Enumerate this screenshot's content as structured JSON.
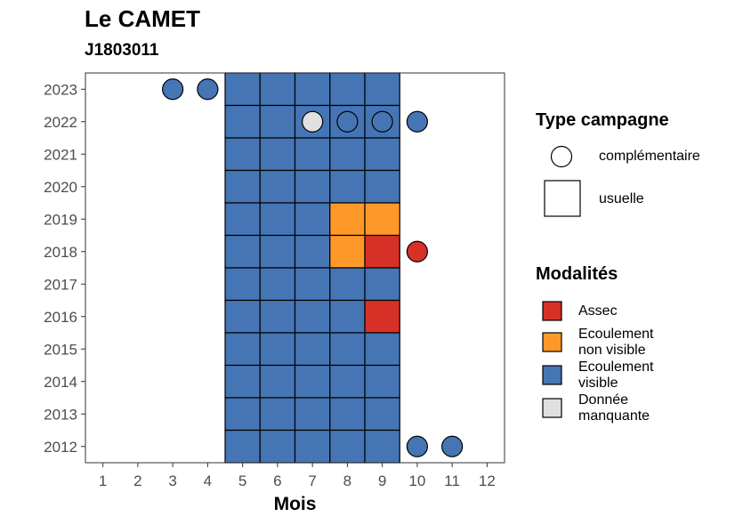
{
  "title": "Le CAMET",
  "subtitle": "J1803011",
  "colors": {
    "assec": "#d73027",
    "non_visible": "#fe9929",
    "visible": "#4575b4",
    "manquante": "#e0e0e0"
  },
  "chart_data": {
    "type": "heatmap",
    "xlabel": "Mois",
    "ylabel": "",
    "x_ticks": [
      1,
      2,
      3,
      4,
      5,
      6,
      7,
      8,
      9,
      10,
      11,
      12
    ],
    "y_ticks": [
      2012,
      2013,
      2014,
      2015,
      2016,
      2017,
      2018,
      2019,
      2020,
      2021,
      2022,
      2023
    ],
    "x_range": [
      0.5,
      12.5
    ],
    "y_range": [
      2011.5,
      2023.5
    ],
    "usual_campaign_months": [
      5,
      6,
      7,
      8,
      9
    ],
    "cells": [
      {
        "year": 2023,
        "month": 3,
        "type": "complementaire",
        "modalite": "visible"
      },
      {
        "year": 2023,
        "month": 4,
        "type": "complementaire",
        "modalite": "visible"
      },
      {
        "year": 2023,
        "month": 5,
        "type": "usuelle",
        "modalite": "visible"
      },
      {
        "year": 2023,
        "month": 6,
        "type": "usuelle",
        "modalite": "visible"
      },
      {
        "year": 2023,
        "month": 7,
        "type": "usuelle",
        "modalite": "visible"
      },
      {
        "year": 2023,
        "month": 8,
        "type": "usuelle",
        "modalite": "visible"
      },
      {
        "year": 2023,
        "month": 9,
        "type": "usuelle",
        "modalite": "visible"
      },
      {
        "year": 2022,
        "month": 5,
        "type": "usuelle",
        "modalite": "visible"
      },
      {
        "year": 2022,
        "month": 6,
        "type": "usuelle",
        "modalite": "visible"
      },
      {
        "year": 2022,
        "month": 7,
        "type": "usuelle",
        "modalite": "visible"
      },
      {
        "year": 2022,
        "month": 8,
        "type": "usuelle",
        "modalite": "visible"
      },
      {
        "year": 2022,
        "month": 9,
        "type": "usuelle",
        "modalite": "visible"
      },
      {
        "year": 2022,
        "month": 7,
        "type": "complementaire",
        "modalite": "manquante"
      },
      {
        "year": 2022,
        "month": 8,
        "type": "complementaire",
        "modalite": "visible"
      },
      {
        "year": 2022,
        "month": 9,
        "type": "complementaire",
        "modalite": "visible"
      },
      {
        "year": 2022,
        "month": 10,
        "type": "complementaire",
        "modalite": "visible"
      },
      {
        "year": 2021,
        "month": 5,
        "type": "usuelle",
        "modalite": "visible"
      },
      {
        "year": 2021,
        "month": 6,
        "type": "usuelle",
        "modalite": "visible"
      },
      {
        "year": 2021,
        "month": 7,
        "type": "usuelle",
        "modalite": "visible"
      },
      {
        "year": 2021,
        "month": 8,
        "type": "usuelle",
        "modalite": "visible"
      },
      {
        "year": 2021,
        "month": 9,
        "type": "usuelle",
        "modalite": "visible"
      },
      {
        "year": 2020,
        "month": 5,
        "type": "usuelle",
        "modalite": "visible"
      },
      {
        "year": 2020,
        "month": 6,
        "type": "usuelle",
        "modalite": "visible"
      },
      {
        "year": 2020,
        "month": 7,
        "type": "usuelle",
        "modalite": "visible"
      },
      {
        "year": 2020,
        "month": 8,
        "type": "usuelle",
        "modalite": "visible"
      },
      {
        "year": 2020,
        "month": 9,
        "type": "usuelle",
        "modalite": "visible"
      },
      {
        "year": 2019,
        "month": 5,
        "type": "usuelle",
        "modalite": "visible"
      },
      {
        "year": 2019,
        "month": 6,
        "type": "usuelle",
        "modalite": "visible"
      },
      {
        "year": 2019,
        "month": 7,
        "type": "usuelle",
        "modalite": "visible"
      },
      {
        "year": 2019,
        "month": 8,
        "type": "usuelle",
        "modalite": "non_visible"
      },
      {
        "year": 2019,
        "month": 9,
        "type": "usuelle",
        "modalite": "non_visible"
      },
      {
        "year": 2018,
        "month": 5,
        "type": "usuelle",
        "modalite": "visible"
      },
      {
        "year": 2018,
        "month": 6,
        "type": "usuelle",
        "modalite": "visible"
      },
      {
        "year": 2018,
        "month": 7,
        "type": "usuelle",
        "modalite": "visible"
      },
      {
        "year": 2018,
        "month": 8,
        "type": "usuelle",
        "modalite": "non_visible"
      },
      {
        "year": 2018,
        "month": 9,
        "type": "usuelle",
        "modalite": "assec"
      },
      {
        "year": 2018,
        "month": 10,
        "type": "complementaire",
        "modalite": "assec"
      },
      {
        "year": 2017,
        "month": 5,
        "type": "usuelle",
        "modalite": "visible"
      },
      {
        "year": 2017,
        "month": 6,
        "type": "usuelle",
        "modalite": "visible"
      },
      {
        "year": 2017,
        "month": 7,
        "type": "usuelle",
        "modalite": "visible"
      },
      {
        "year": 2017,
        "month": 8,
        "type": "usuelle",
        "modalite": "visible"
      },
      {
        "year": 2017,
        "month": 9,
        "type": "usuelle",
        "modalite": "visible"
      },
      {
        "year": 2016,
        "month": 5,
        "type": "usuelle",
        "modalite": "visible"
      },
      {
        "year": 2016,
        "month": 6,
        "type": "usuelle",
        "modalite": "visible"
      },
      {
        "year": 2016,
        "month": 7,
        "type": "usuelle",
        "modalite": "visible"
      },
      {
        "year": 2016,
        "month": 8,
        "type": "usuelle",
        "modalite": "visible"
      },
      {
        "year": 2016,
        "month": 9,
        "type": "usuelle",
        "modalite": "assec"
      },
      {
        "year": 2015,
        "month": 5,
        "type": "usuelle",
        "modalite": "visible"
      },
      {
        "year": 2015,
        "month": 6,
        "type": "usuelle",
        "modalite": "visible"
      },
      {
        "year": 2015,
        "month": 7,
        "type": "usuelle",
        "modalite": "visible"
      },
      {
        "year": 2015,
        "month": 8,
        "type": "usuelle",
        "modalite": "visible"
      },
      {
        "year": 2015,
        "month": 9,
        "type": "usuelle",
        "modalite": "visible"
      },
      {
        "year": 2014,
        "month": 5,
        "type": "usuelle",
        "modalite": "visible"
      },
      {
        "year": 2014,
        "month": 6,
        "type": "usuelle",
        "modalite": "visible"
      },
      {
        "year": 2014,
        "month": 7,
        "type": "usuelle",
        "modalite": "visible"
      },
      {
        "year": 2014,
        "month": 8,
        "type": "usuelle",
        "modalite": "visible"
      },
      {
        "year": 2014,
        "month": 9,
        "type": "usuelle",
        "modalite": "visible"
      },
      {
        "year": 2013,
        "month": 5,
        "type": "usuelle",
        "modalite": "visible"
      },
      {
        "year": 2013,
        "month": 6,
        "type": "usuelle",
        "modalite": "visible"
      },
      {
        "year": 2013,
        "month": 7,
        "type": "usuelle",
        "modalite": "visible"
      },
      {
        "year": 2013,
        "month": 8,
        "type": "usuelle",
        "modalite": "visible"
      },
      {
        "year": 2013,
        "month": 9,
        "type": "usuelle",
        "modalite": "visible"
      },
      {
        "year": 2012,
        "month": 5,
        "type": "usuelle",
        "modalite": "visible"
      },
      {
        "year": 2012,
        "month": 6,
        "type": "usuelle",
        "modalite": "visible"
      },
      {
        "year": 2012,
        "month": 7,
        "type": "usuelle",
        "modalite": "visible"
      },
      {
        "year": 2012,
        "month": 8,
        "type": "usuelle",
        "modalite": "visible"
      },
      {
        "year": 2012,
        "month": 9,
        "type": "usuelle",
        "modalite": "visible"
      },
      {
        "year": 2012,
        "month": 10,
        "type": "complementaire",
        "modalite": "visible"
      },
      {
        "year": 2012,
        "month": 11,
        "type": "complementaire",
        "modalite": "visible"
      }
    ],
    "legend": {
      "type_title": "Type campagne",
      "type_items": [
        {
          "key": "complementaire",
          "label": "complémentaire"
        },
        {
          "key": "usuelle",
          "label": "usuelle"
        }
      ],
      "modalites_title": "Modalités",
      "modalites_items": [
        {
          "key": "assec",
          "label_lines": [
            "Assec"
          ]
        },
        {
          "key": "non_visible",
          "label_lines": [
            "Ecoulement",
            "non visible"
          ]
        },
        {
          "key": "visible",
          "label_lines": [
            "Ecoulement",
            "visible"
          ]
        },
        {
          "key": "manquante",
          "label_lines": [
            "Donnée",
            "manquante"
          ]
        }
      ],
      "placement": "right"
    }
  }
}
